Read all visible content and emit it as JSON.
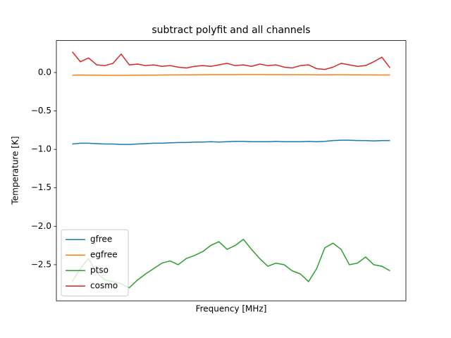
{
  "chart_data": {
    "type": "line",
    "title": "subtract polyfit and all channels",
    "xlabel": "Frequency [MHz]",
    "ylabel": "Temperature [K]",
    "ylim": [
      -2.97,
      0.416
    ],
    "yticks": [
      {
        "value": 0,
        "label": "0.0"
      },
      {
        "value": -0.5,
        "label": "−0.5"
      },
      {
        "value": -1,
        "label": "−1.0"
      },
      {
        "value": -1.5,
        "label": "−1.5"
      },
      {
        "value": -2,
        "label": "−2.0"
      },
      {
        "value": -2.5,
        "label": "−2.5"
      }
    ],
    "legend": "lower left",
    "series": [
      {
        "name": "gfree",
        "color": "#1f77b4",
        "values": [
          -0.93,
          -0.92,
          -0.92,
          -0.925,
          -0.93,
          -0.93,
          -0.935,
          -0.935,
          -0.93,
          -0.925,
          -0.92,
          -0.92,
          -0.915,
          -0.91,
          -0.91,
          -0.905,
          -0.905,
          -0.9,
          -0.905,
          -0.9,
          -0.895,
          -0.895,
          -0.9,
          -0.9,
          -0.9,
          -0.895,
          -0.9,
          -0.9,
          -0.9,
          -0.895,
          -0.9,
          -0.895,
          -0.885,
          -0.88,
          -0.88,
          -0.885,
          -0.885,
          -0.89,
          -0.885,
          -0.885
        ]
      },
      {
        "name": "egfree",
        "color": "#ff7f0e",
        "values": [
          -0.035,
          -0.032,
          -0.033,
          -0.034,
          -0.035,
          -0.036,
          -0.036,
          -0.035,
          -0.034,
          -0.033,
          -0.033,
          -0.032,
          -0.031,
          -0.031,
          -0.03,
          -0.03,
          -0.029,
          -0.028,
          -0.028,
          -0.027,
          -0.027,
          -0.026,
          -0.026,
          -0.026,
          -0.027,
          -0.027,
          -0.028,
          -0.028,
          -0.029,
          -0.029,
          -0.03,
          -0.03,
          -0.029,
          -0.029,
          -0.03,
          -0.03,
          -0.031,
          -0.031,
          -0.032,
          -0.032
        ]
      },
      {
        "name": "ptso",
        "color": "#2ca02c",
        "values": [
          -2.72,
          -2.55,
          -2.42,
          -2.6,
          -2.7,
          -2.72,
          -2.75,
          -2.8,
          -2.7,
          -2.62,
          -2.55,
          -2.48,
          -2.45,
          -2.5,
          -2.42,
          -2.38,
          -2.33,
          -2.25,
          -2.2,
          -2.3,
          -2.25,
          -2.17,
          -2.3,
          -2.42,
          -2.52,
          -2.48,
          -2.5,
          -2.58,
          -2.62,
          -2.72,
          -2.55,
          -2.28,
          -2.22,
          -2.3,
          -2.5,
          -2.48,
          -2.4,
          -2.5,
          -2.52,
          -2.58
        ]
      },
      {
        "name": "cosmo",
        "color": "#d62728",
        "values": [
          0.27,
          0.14,
          0.19,
          0.1,
          0.09,
          0.12,
          0.24,
          0.1,
          0.11,
          0.09,
          0.1,
          0.08,
          0.09,
          0.07,
          0.06,
          0.08,
          0.09,
          0.08,
          0.1,
          0.12,
          0.09,
          0.1,
          0.08,
          0.11,
          0.09,
          0.1,
          0.07,
          0.06,
          0.09,
          0.1,
          0.05,
          0.04,
          0.07,
          0.12,
          0.1,
          0.08,
          0.09,
          0.14,
          0.2,
          0.06
        ]
      }
    ]
  }
}
